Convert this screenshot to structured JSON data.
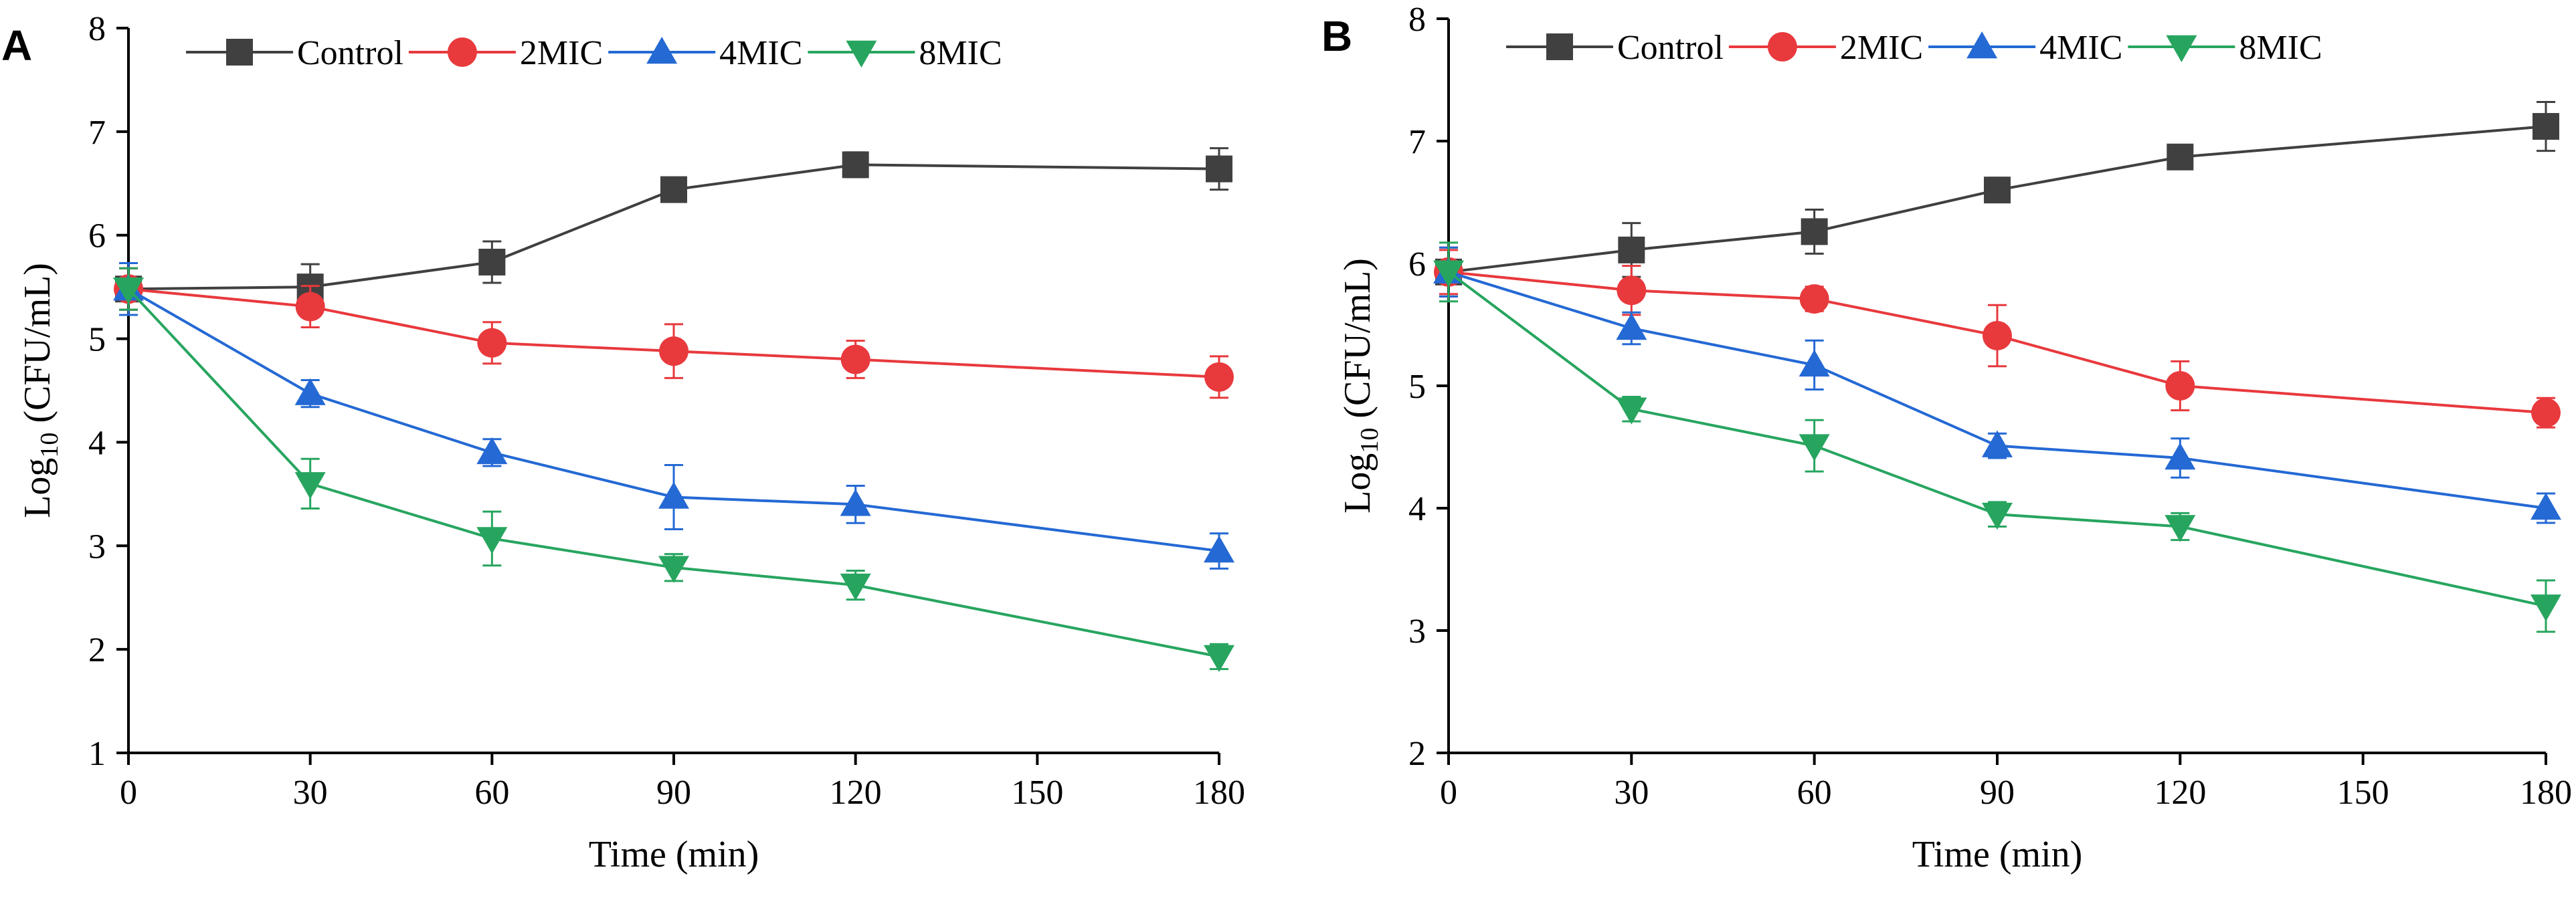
{
  "chart_data": [
    {
      "type": "line",
      "panel_label": "A",
      "title": "",
      "xlabel": "Time (min)",
      "ylabel": {
        "prefix": "Log",
        "subscript": "10",
        "suffix": " (CFU/mL)"
      },
      "xlim": [
        0,
        180
      ],
      "ylim": [
        1,
        8
      ],
      "xticks": [
        0,
        30,
        60,
        90,
        120,
        150,
        180
      ],
      "yticks": [
        1,
        2,
        3,
        4,
        5,
        6,
        7,
        8
      ],
      "grid": false,
      "legend": "top",
      "x": [
        0,
        30,
        60,
        90,
        120,
        180
      ],
      "series": [
        {
          "name": "Control",
          "color": "#404040",
          "marker": "square",
          "values": [
            5.48,
            5.5,
            5.74,
            6.44,
            6.68,
            6.64
          ],
          "errors": [
            0.2,
            0.22,
            0.2,
            0.1,
            0.12,
            0.2
          ]
        },
        {
          "name": "2MIC",
          "color": "#e8393d",
          "marker": "circle",
          "values": [
            5.48,
            5.31,
            4.96,
            4.88,
            4.8,
            4.63
          ],
          "errors": [
            0.2,
            0.2,
            0.2,
            0.26,
            0.18,
            0.2
          ]
        },
        {
          "name": "4MIC",
          "color": "#2469d4",
          "marker": "triangle-up",
          "values": [
            5.48,
            4.47,
            3.9,
            3.47,
            3.4,
            2.95
          ],
          "errors": [
            0.25,
            0.13,
            0.13,
            0.31,
            0.18,
            0.17
          ]
        },
        {
          "name": "8MIC",
          "color": "#27a55f",
          "marker": "triangle-down",
          "values": [
            5.48,
            3.6,
            3.07,
            2.79,
            2.62,
            1.93
          ],
          "errors": [
            0.2,
            0.24,
            0.26,
            0.13,
            0.14,
            0.12
          ]
        }
      ]
    },
    {
      "type": "line",
      "panel_label": "B",
      "title": "",
      "xlabel": "Time (min)",
      "ylabel": {
        "prefix": "Log",
        "subscript": "10",
        "suffix": " (CFU/mL)"
      },
      "xlim": [
        0,
        180
      ],
      "ylim": [
        2,
        8
      ],
      "xticks": [
        0,
        30,
        60,
        90,
        120,
        150,
        180
      ],
      "yticks": [
        2,
        3,
        4,
        5,
        6,
        7,
        8
      ],
      "grid": false,
      "legend": "top",
      "x": [
        0,
        30,
        60,
        90,
        120,
        180
      ],
      "series": [
        {
          "name": "Control",
          "color": "#404040",
          "marker": "square",
          "values": [
            5.93,
            6.11,
            6.26,
            6.6,
            6.87,
            7.12
          ],
          "errors": [
            0.2,
            0.22,
            0.18,
            0.1,
            0.08,
            0.2
          ]
        },
        {
          "name": "2MIC",
          "color": "#e8393d",
          "marker": "circle",
          "values": [
            5.93,
            5.78,
            5.71,
            5.41,
            5.0,
            4.78
          ],
          "errors": [
            0.18,
            0.2,
            0.1,
            0.25,
            0.2,
            0.12
          ]
        },
        {
          "name": "4MIC",
          "color": "#2469d4",
          "marker": "triangle-up",
          "values": [
            5.93,
            5.47,
            5.17,
            4.51,
            4.41,
            4.0
          ],
          "errors": [
            0.2,
            0.13,
            0.2,
            0.1,
            0.16,
            0.12
          ]
        },
        {
          "name": "8MIC",
          "color": "#27a55f",
          "marker": "triangle-down",
          "values": [
            5.93,
            4.81,
            4.51,
            3.95,
            3.85,
            3.2
          ],
          "errors": [
            0.24,
            0.1,
            0.21,
            0.1,
            0.11,
            0.21
          ]
        }
      ]
    }
  ]
}
